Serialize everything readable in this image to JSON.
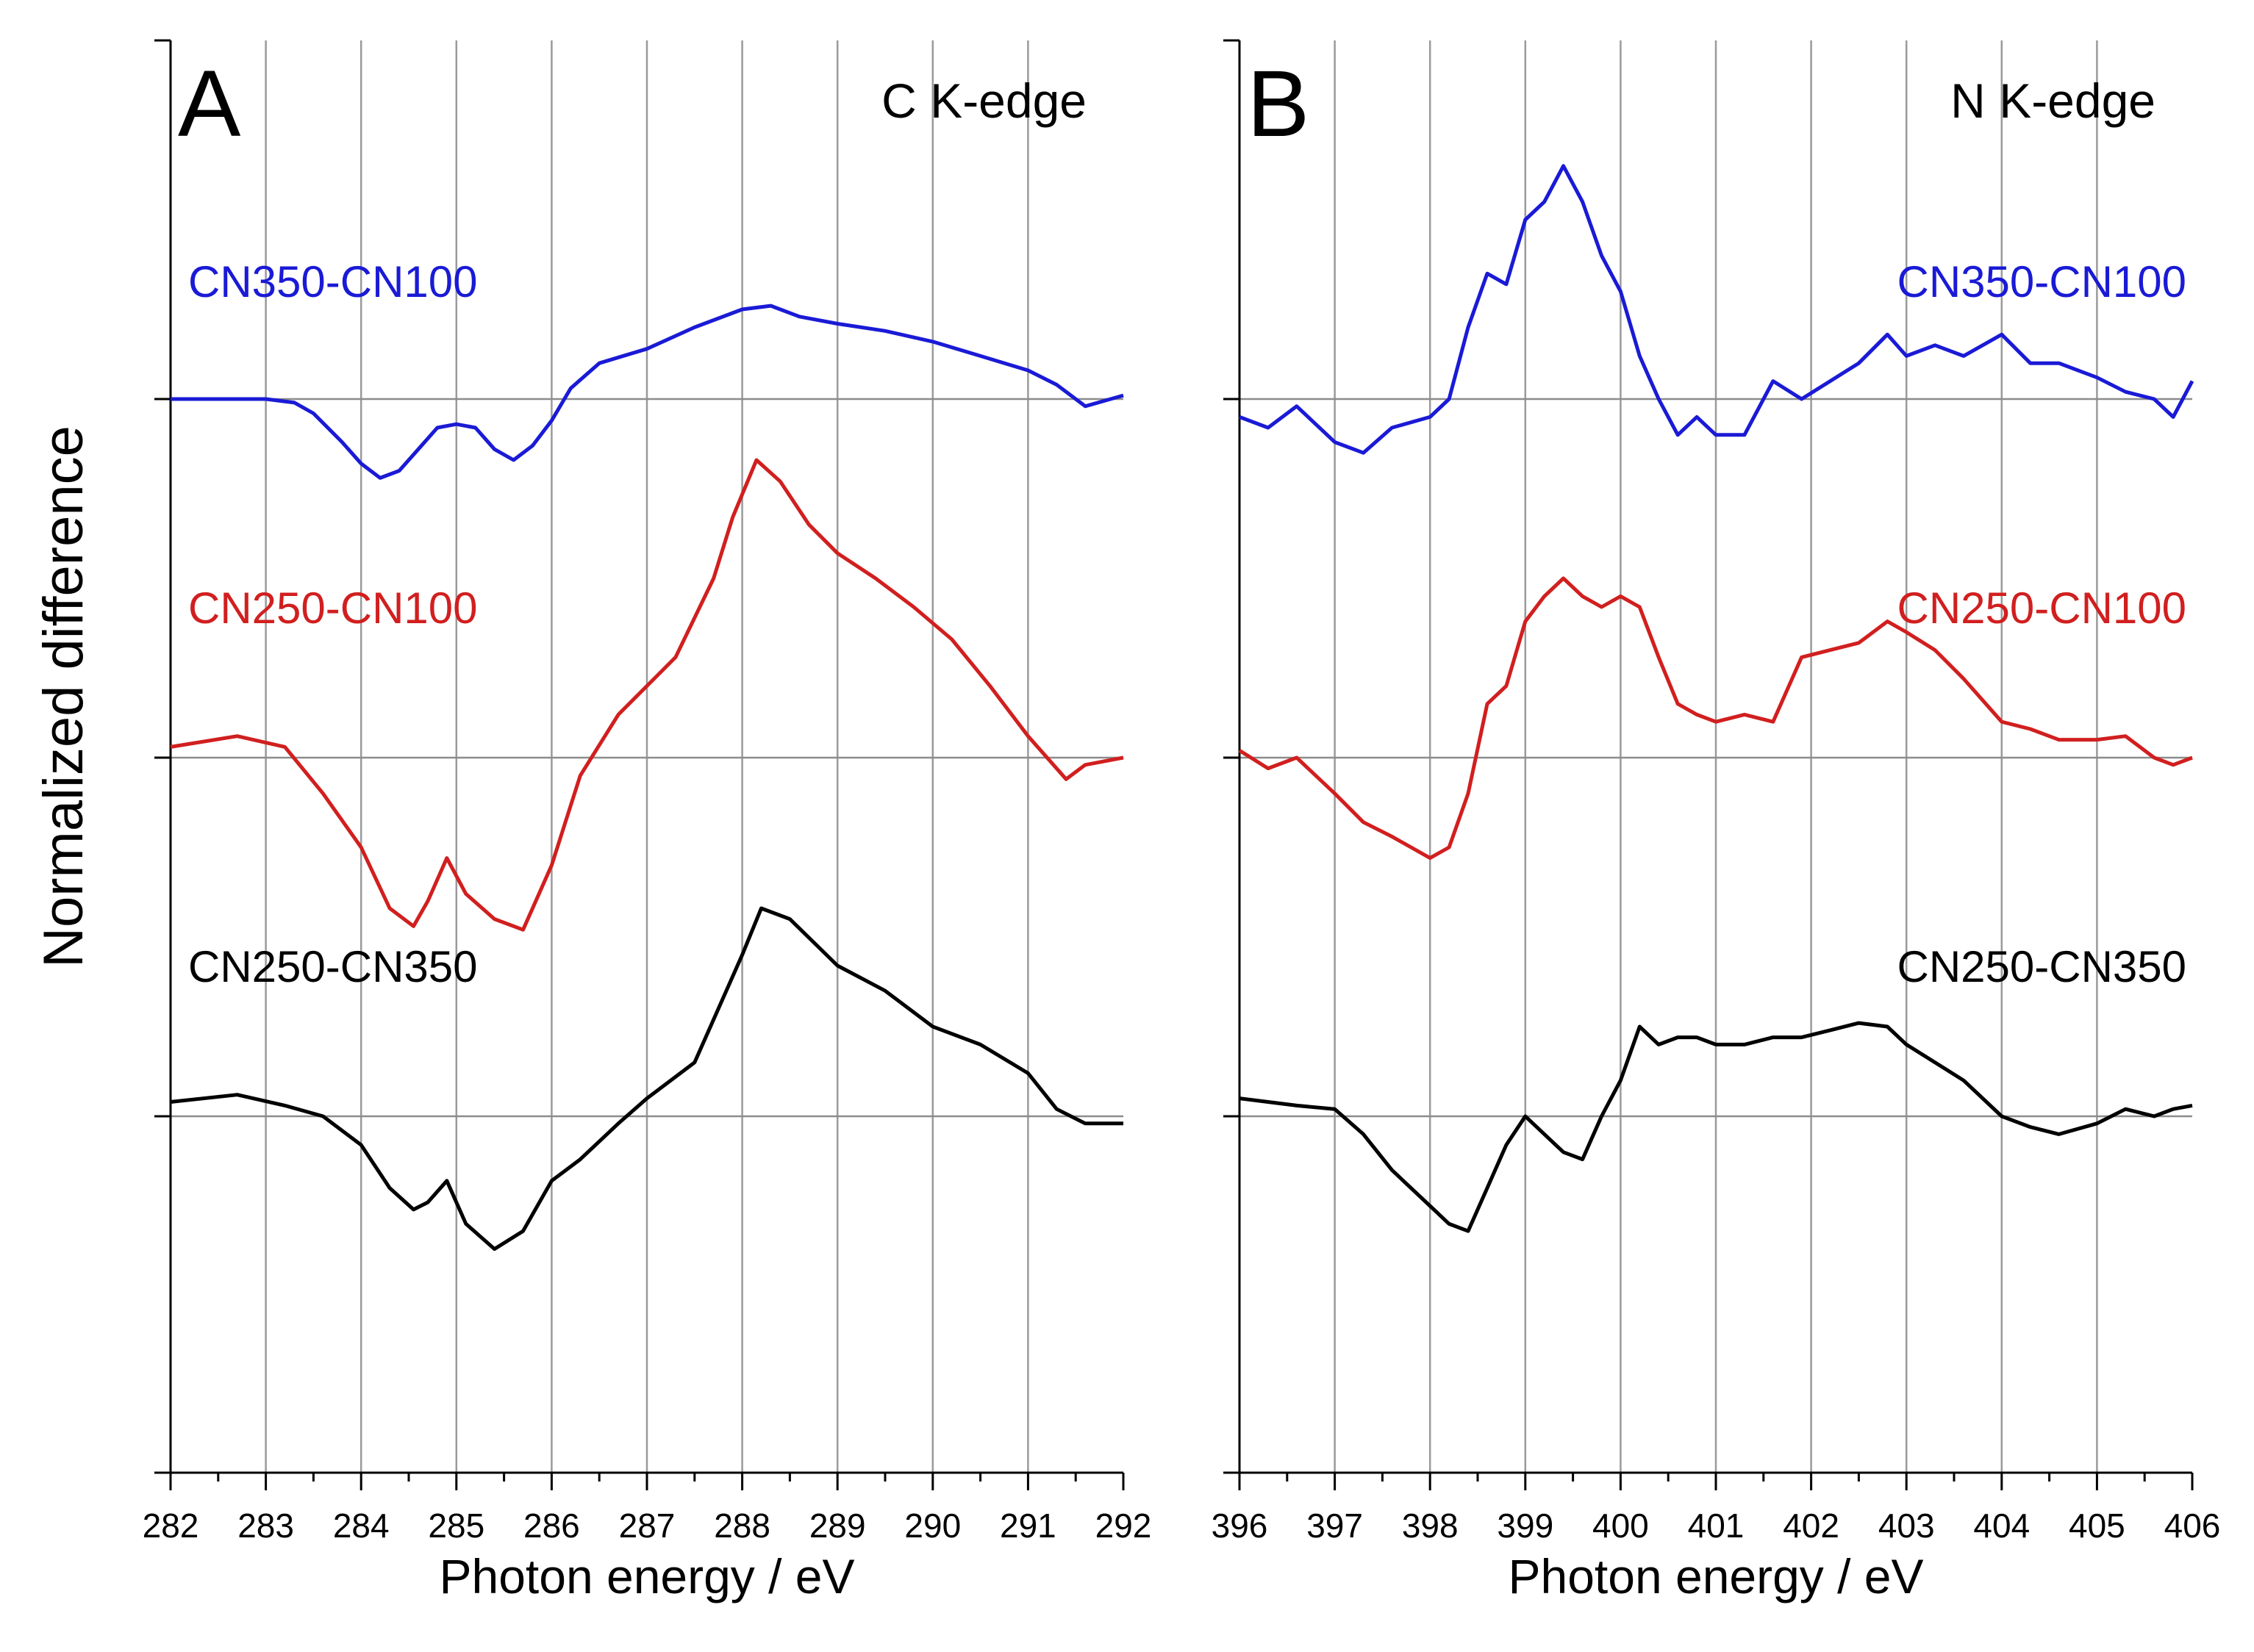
{
  "ylabel": "Normalized difference",
  "chart_data": [
    {
      "type": "line",
      "panel_letter": "A",
      "panel_title": "C K-edge",
      "xlabel": "Photon energy / eV",
      "ylabel": "Normalized difference",
      "xlim": [
        282,
        292
      ],
      "xticks": [
        282,
        283,
        284,
        285,
        286,
        287,
        288,
        289,
        290,
        291,
        292
      ],
      "grid": "vertical",
      "baselines": [
        0,
        -1,
        -2
      ],
      "series": [
        {
          "name": "CN350-CN100",
          "color": "#1a1ad6",
          "offset": 0,
          "label_align": "left",
          "label_y": 0.33,
          "x": [
            282,
            282.5,
            283,
            283.3,
            283.5,
            283.8,
            284,
            284.2,
            284.4,
            284.6,
            284.8,
            285,
            285.2,
            285.4,
            285.6,
            285.8,
            286,
            286.2,
            286.5,
            287,
            287.5,
            288,
            288.3,
            288.6,
            289,
            289.5,
            290,
            290.5,
            291,
            291.3,
            291.6,
            292
          ],
          "y": [
            0,
            0,
            0,
            -0.01,
            -0.04,
            -0.12,
            -0.18,
            -0.22,
            -0.2,
            -0.14,
            -0.08,
            -0.07,
            -0.08,
            -0.14,
            -0.17,
            -0.13,
            -0.06,
            0.03,
            0.1,
            0.14,
            0.2,
            0.25,
            0.26,
            0.23,
            0.21,
            0.19,
            0.16,
            0.12,
            0.08,
            0.04,
            -0.02,
            0.01
          ]
        },
        {
          "name": "CN250-CN100",
          "color": "#d11f1f",
          "offset": -1,
          "label_align": "left",
          "label_y": -0.58,
          "x": [
            282,
            282.7,
            283.2,
            283.6,
            284,
            284.3,
            284.55,
            284.7,
            284.9,
            285.1,
            285.4,
            285.7,
            286,
            286.3,
            286.7,
            287,
            287.3,
            287.7,
            287.9,
            288.15,
            288.4,
            288.7,
            289,
            289.4,
            289.8,
            290.2,
            290.6,
            291,
            291.4,
            291.6,
            292
          ],
          "y": [
            0.03,
            0.06,
            0.03,
            -0.1,
            -0.25,
            -0.42,
            -0.47,
            -0.4,
            -0.28,
            -0.38,
            -0.45,
            -0.48,
            -0.3,
            -0.05,
            0.12,
            0.2,
            0.28,
            0.5,
            0.67,
            0.83,
            0.77,
            0.65,
            0.57,
            0.5,
            0.42,
            0.33,
            0.2,
            0.06,
            -0.06,
            -0.02,
            0
          ]
        },
        {
          "name": "CN250-CN350",
          "color": "#000000",
          "offset": -2,
          "label_align": "left",
          "label_y": -1.58,
          "x": [
            282,
            282.7,
            283.2,
            283.6,
            284,
            284.3,
            284.55,
            284.7,
            284.9,
            285.1,
            285.4,
            285.7,
            286,
            286.3,
            286.7,
            287,
            287.5,
            288,
            288.2,
            288.5,
            289,
            289.5,
            290,
            290.5,
            291,
            291.3,
            291.6,
            292
          ],
          "y": [
            0.04,
            0.06,
            0.03,
            0,
            -0.08,
            -0.2,
            -0.26,
            -0.24,
            -0.18,
            -0.3,
            -0.37,
            -0.32,
            -0.18,
            -0.12,
            -0.02,
            0.05,
            0.15,
            0.45,
            0.58,
            0.55,
            0.42,
            0.35,
            0.25,
            0.2,
            0.12,
            0.02,
            -0.02,
            -0.02
          ]
        }
      ]
    },
    {
      "type": "line",
      "panel_letter": "B",
      "panel_title": "N K-edge",
      "xlabel": "Photon energy / eV",
      "ylabel": "Normalized difference",
      "xlim": [
        396,
        406
      ],
      "xticks": [
        396,
        397,
        398,
        399,
        400,
        401,
        402,
        403,
        404,
        405,
        406
      ],
      "grid": "vertical",
      "baselines": [
        0,
        -1,
        -2
      ],
      "series": [
        {
          "name": "CN350-CN100",
          "color": "#1a1ad6",
          "offset": 0,
          "label_align": "right",
          "label_y": 0.33,
          "x": [
            396,
            396.3,
            396.6,
            397,
            397.3,
            397.6,
            398,
            398.2,
            398.4,
            398.6,
            398.8,
            399,
            399.2,
            399.4,
            399.6,
            399.8,
            400,
            400.2,
            400.4,
            400.6,
            400.8,
            401,
            401.3,
            401.6,
            401.9,
            402.2,
            402.5,
            402.8,
            403,
            403.3,
            403.6,
            404,
            404.3,
            404.6,
            405,
            405.3,
            405.6,
            405.8,
            406
          ],
          "y": [
            -0.05,
            -0.08,
            -0.02,
            -0.12,
            -0.15,
            -0.08,
            -0.05,
            0,
            0.2,
            0.35,
            0.32,
            0.5,
            0.55,
            0.65,
            0.55,
            0.4,
            0.3,
            0.12,
            0,
            -0.1,
            -0.05,
            -0.1,
            -0.1,
            0.05,
            0,
            0.05,
            0.1,
            0.18,
            0.12,
            0.15,
            0.12,
            0.18,
            0.1,
            0.1,
            0.06,
            0.02,
            0,
            -0.05,
            0.05
          ]
        },
        {
          "name": "CN250-CN100",
          "color": "#d11f1f",
          "offset": -1,
          "label_align": "right",
          "label_y": -0.58,
          "x": [
            396,
            396.3,
            396.6,
            397,
            397.3,
            397.6,
            398,
            398.2,
            398.4,
            398.6,
            398.8,
            399,
            399.2,
            399.4,
            399.6,
            399.8,
            400,
            400.2,
            400.4,
            400.6,
            400.8,
            401,
            401.3,
            401.6,
            401.9,
            402.2,
            402.5,
            402.8,
            403,
            403.3,
            403.6,
            404,
            404.3,
            404.6,
            405,
            405.3,
            405.6,
            405.8,
            406
          ],
          "y": [
            0.02,
            -0.03,
            0,
            -0.1,
            -0.18,
            -0.22,
            -0.28,
            -0.25,
            -0.1,
            0.15,
            0.2,
            0.38,
            0.45,
            0.5,
            0.45,
            0.42,
            0.45,
            0.42,
            0.28,
            0.15,
            0.12,
            0.1,
            0.12,
            0.1,
            0.28,
            0.3,
            0.32,
            0.38,
            0.35,
            0.3,
            0.22,
            0.1,
            0.08,
            0.05,
            0.05,
            0.06,
            0,
            -0.02,
            0
          ]
        },
        {
          "name": "CN250-CN350",
          "color": "#000000",
          "offset": -2,
          "label_align": "right",
          "label_y": -1.58,
          "x": [
            396,
            396.3,
            396.6,
            397,
            397.3,
            397.6,
            398,
            398.2,
            398.4,
            398.6,
            398.8,
            399,
            399.2,
            399.4,
            399.6,
            399.8,
            400,
            400.2,
            400.4,
            400.6,
            400.8,
            401,
            401.3,
            401.6,
            401.9,
            402.2,
            402.5,
            402.8,
            403,
            403.3,
            403.6,
            404,
            404.3,
            404.6,
            405,
            405.3,
            405.6,
            405.8,
            406
          ],
          "y": [
            0.05,
            0.04,
            0.03,
            0.02,
            -0.05,
            -0.15,
            -0.25,
            -0.3,
            -0.32,
            -0.2,
            -0.08,
            0,
            -0.05,
            -0.1,
            -0.12,
            0,
            0.1,
            0.25,
            0.2,
            0.22,
            0.22,
            0.2,
            0.2,
            0.22,
            0.22,
            0.24,
            0.26,
            0.25,
            0.2,
            0.15,
            0.1,
            0,
            -0.03,
            -0.05,
            -0.02,
            0.02,
            0,
            0.02,
            0.03
          ]
        }
      ]
    }
  ]
}
